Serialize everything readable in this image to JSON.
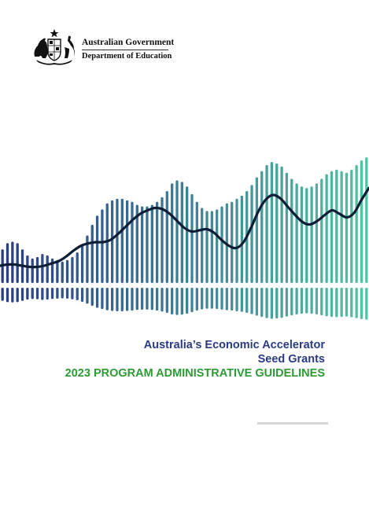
{
  "header": {
    "government": "Australian Government",
    "department": "Department of Education"
  },
  "cover": {
    "title_line1": "Australia’s Economic Accelerator",
    "title_line2": "Seed Grants",
    "subtitle": "2023 PROGRAM ADMINISTRATIVE GUIDELINES"
  },
  "graphic": {
    "colors": {
      "start": "#2a3b86",
      "end": "#52c4a2",
      "line": "#0d1e36"
    },
    "bar_levels": [
      0.22,
      0.26,
      0.27,
      0.26,
      0.22,
      0.18,
      0.16,
      0.17,
      0.19,
      0.18,
      0.16,
      0.15,
      0.14,
      0.15,
      0.17,
      0.2,
      0.25,
      0.31,
      0.38,
      0.44,
      0.48,
      0.52,
      0.54,
      0.55,
      0.55,
      0.54,
      0.53,
      0.51,
      0.5,
      0.5,
      0.51,
      0.53,
      0.56,
      0.6,
      0.65,
      0.67,
      0.66,
      0.63,
      0.58,
      0.53,
      0.49,
      0.47,
      0.47,
      0.48,
      0.5,
      0.52,
      0.53,
      0.55,
      0.57,
      0.6,
      0.64,
      0.69,
      0.73,
      0.77,
      0.79,
      0.78,
      0.76,
      0.72,
      0.68,
      0.65,
      0.63,
      0.62,
      0.63,
      0.65,
      0.68,
      0.71,
      0.73,
      0.74,
      0.73,
      0.72,
      0.74,
      0.77,
      0.8,
      0.82
    ],
    "line_levels": [
      0.08,
      0.09,
      0.09,
      0.08,
      0.07,
      0.07,
      0.08,
      0.1,
      0.12,
      0.16,
      0.21,
      0.25,
      0.27,
      0.28,
      0.28,
      0.3,
      0.35,
      0.41,
      0.47,
      0.52,
      0.55,
      0.57,
      0.56,
      0.52,
      0.46,
      0.4,
      0.37,
      0.38,
      0.39,
      0.36,
      0.3,
      0.25,
      0.23,
      0.28,
      0.4,
      0.54,
      0.64,
      0.68,
      0.65,
      0.58,
      0.51,
      0.45,
      0.43,
      0.46,
      0.51,
      0.55,
      0.52,
      0.49,
      0.53,
      0.64,
      0.74
    ]
  }
}
